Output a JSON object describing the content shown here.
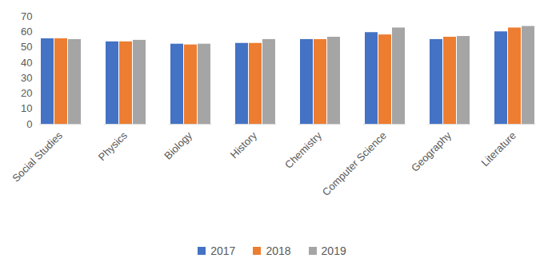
{
  "chart_data": {
    "type": "bar",
    "categories": [
      "Social Studies",
      "Physics",
      "Biology",
      "History",
      "Chemistry",
      "Computer Science",
      "Geography",
      "Literature"
    ],
    "series": [
      {
        "name": "2017",
        "color": "#4472c4",
        "values": [
          55.5,
          53.5,
          52,
          52.5,
          55,
          59.5,
          55,
          60
        ]
      },
      {
        "name": "2018",
        "color": "#ed7d31",
        "values": [
          55.5,
          53.5,
          51.5,
          52.5,
          55,
          58,
          56.5,
          62.5
        ]
      },
      {
        "name": "2019",
        "color": "#a5a5a5",
        "values": [
          55,
          54.5,
          52,
          55,
          56.5,
          62.5,
          57,
          63.5
        ]
      }
    ],
    "ylim": [
      0,
      70
    ],
    "yticks": [
      0,
      10,
      20,
      30,
      40,
      50,
      60,
      70
    ],
    "grid": false,
    "legend": "bottom"
  }
}
